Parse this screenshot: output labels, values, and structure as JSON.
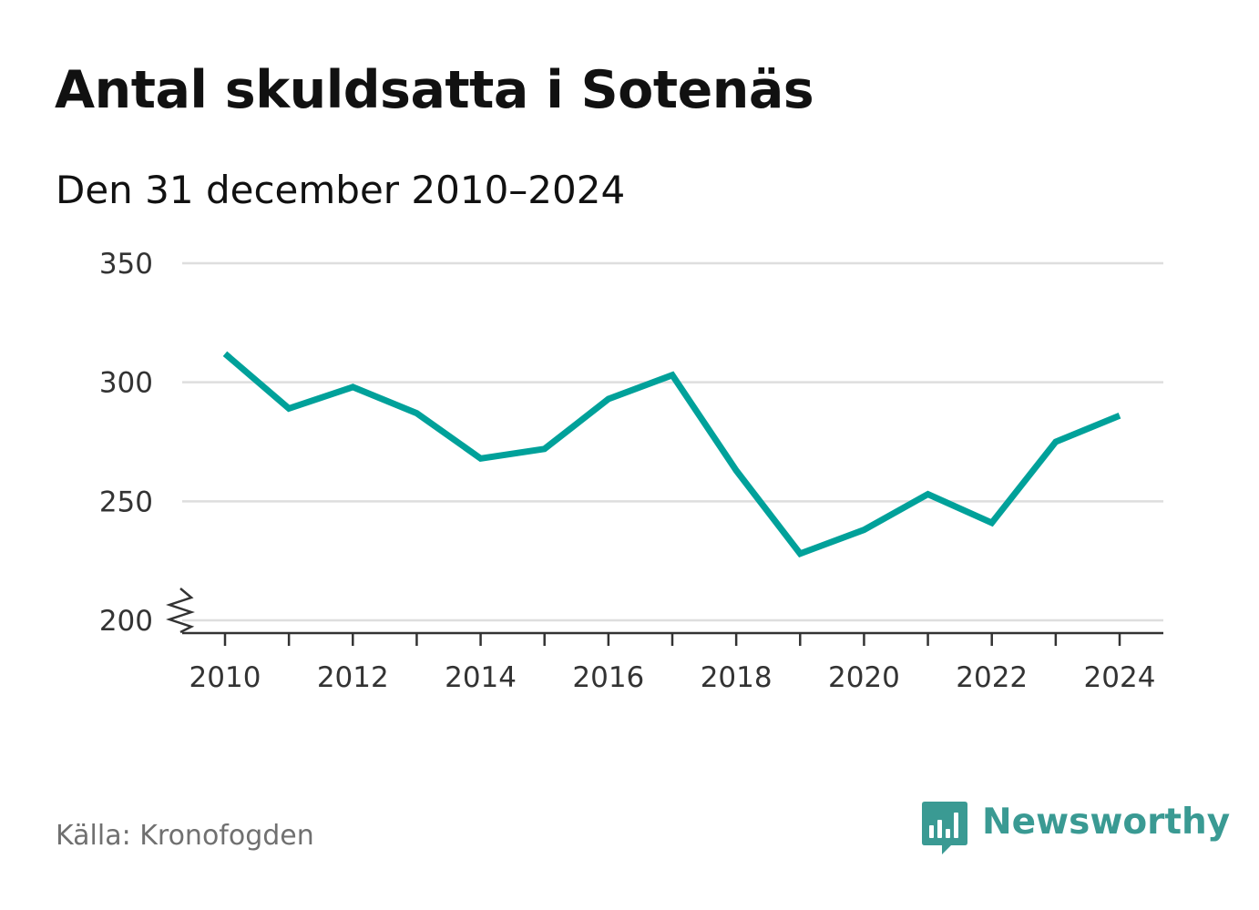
{
  "title": "Antal skuldsatta i Sotenäs",
  "subtitle": "Den 31 december 2010–2024",
  "source": "Källa: Kronofogden",
  "brand": {
    "name": "Newsworthy",
    "icon": "bar-chart-speech-bubble-icon",
    "color": "#3a9a93"
  },
  "colors": {
    "line": "#00a19a",
    "grid": "#dedede",
    "axis": "#333333"
  },
  "chart_data": {
    "type": "line",
    "title": "Antal skuldsatta i Sotenäs",
    "subtitle": "Den 31 december 2010–2024",
    "xlabel": "",
    "ylabel": "",
    "x": [
      2010,
      2011,
      2012,
      2013,
      2014,
      2015,
      2016,
      2017,
      2018,
      2019,
      2020,
      2021,
      2022,
      2023,
      2024
    ],
    "series": [
      {
        "name": "Antal skuldsatta",
        "values": [
          312,
          289,
          298,
          287,
          268,
          272,
          293,
          303,
          263,
          228,
          238,
          253,
          241,
          275,
          286
        ]
      }
    ],
    "ylim": [
      200,
      350
    ],
    "y_ticks": [
      "200",
      "250",
      "300",
      "350"
    ],
    "x_ticks": [
      "2010",
      "2012",
      "2014",
      "2016",
      "2018",
      "2020",
      "2022",
      "2024"
    ],
    "y_axis_break": true,
    "grid": true,
    "legend": "none"
  }
}
